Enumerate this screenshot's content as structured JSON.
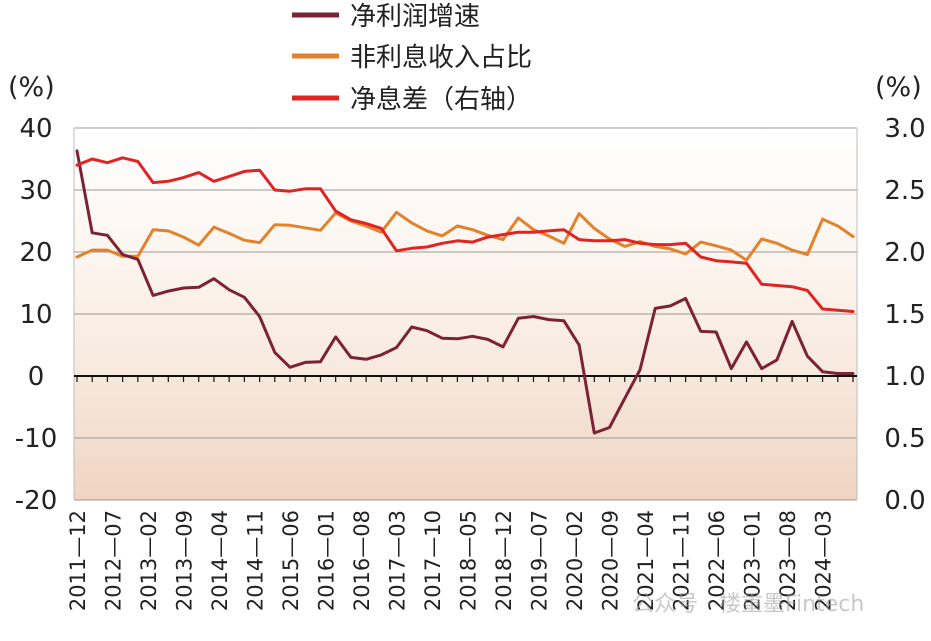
{
  "chart_data": {
    "type": "line",
    "yunit_left": "(%)",
    "yunit_right": "(%)",
    "ylim_left": [
      -20,
      40
    ],
    "yticks_left": [
      "40",
      "30",
      "20",
      "10",
      "0",
      "-10",
      "-20"
    ],
    "ylim_right": [
      0.0,
      3.0
    ],
    "yticks_right": [
      "3.0",
      "2.5",
      "2.0",
      "1.5",
      "1.0",
      "0.5",
      "0.0"
    ],
    "grid": true,
    "legend_position": "top",
    "x_tick_labels": [
      "2011-12",
      "2012-07",
      "2013-02",
      "2013-09",
      "2014-04",
      "2014-11",
      "2015-06",
      "2016-01",
      "2016-08",
      "2017-03",
      "2017-10",
      "2018-05",
      "2018-12",
      "2019-07",
      "2020-02",
      "2020-09",
      "2021-04",
      "2021-11",
      "2022-06",
      "2023-01",
      "2023-08",
      "2024-03"
    ],
    "x_quarters": [
      "2011Q4",
      "2012Q1",
      "2012Q2",
      "2012Q3",
      "2012Q4",
      "2013Q1",
      "2013Q2",
      "2013Q3",
      "2013Q4",
      "2014Q1",
      "2014Q2",
      "2014Q3",
      "2014Q4",
      "2015Q1",
      "2015Q2",
      "2015Q3",
      "2015Q4",
      "2016Q1",
      "2016Q2",
      "2016Q3",
      "2016Q4",
      "2017Q1",
      "2017Q2",
      "2017Q3",
      "2017Q4",
      "2018Q1",
      "2018Q2",
      "2018Q3",
      "2018Q4",
      "2019Q1",
      "2019Q2",
      "2019Q3",
      "2019Q4",
      "2020Q1",
      "2020Q2",
      "2020Q3",
      "2020Q4",
      "2021Q1",
      "2021Q2",
      "2021Q3",
      "2021Q4",
      "2022Q1",
      "2022Q2",
      "2022Q3",
      "2022Q4",
      "2023Q1",
      "2023Q2",
      "2023Q3",
      "2023Q4",
      "2024Q1",
      "2024Q2",
      "2024Q3"
    ],
    "series": [
      {
        "name": "净利润增速",
        "axis": "left",
        "color": "#7b2335",
        "values": [
          36.3,
          23.1,
          22.7,
          19.6,
          18.8,
          13.0,
          13.7,
          14.2,
          14.3,
          15.7,
          13.9,
          12.7,
          9.6,
          3.8,
          1.4,
          2.2,
          2.3,
          6.3,
          3.0,
          2.7,
          3.4,
          4.6,
          7.9,
          7.3,
          6.1,
          6.0,
          6.4,
          5.9,
          4.7,
          9.3,
          9.6,
          9.1,
          8.9,
          5.0,
          -9.2,
          -8.3,
          -3.6,
          1.0,
          10.9,
          11.3,
          12.5,
          7.2,
          7.1,
          1.2,
          5.5,
          1.2,
          2.6,
          8.8,
          3.2,
          0.7,
          0.4,
          0.4
        ]
      },
      {
        "name": "非利息收入占比",
        "axis": "left",
        "color": "#e3822c",
        "values": [
          19.2,
          20.3,
          20.3,
          19.3,
          19.3,
          23.6,
          23.4,
          22.4,
          21.1,
          24.0,
          23.0,
          21.9,
          21.5,
          24.4,
          24.3,
          23.9,
          23.5,
          26.3,
          25.0,
          24.2,
          23.2,
          26.4,
          24.7,
          23.4,
          22.6,
          24.2,
          23.6,
          22.7,
          22.0,
          25.5,
          23.6,
          22.6,
          21.4,
          26.2,
          23.8,
          22.1,
          20.9,
          21.7,
          20.9,
          20.5,
          19.7,
          21.6,
          21.0,
          20.3,
          18.7,
          22.1,
          21.4,
          20.3,
          19.6,
          25.3,
          24.2,
          22.5
        ]
      },
      {
        "name": "净息差（右轴）",
        "axis": "right",
        "color": "#e02424",
        "values": [
          2.7,
          2.75,
          2.72,
          2.76,
          2.73,
          2.56,
          2.57,
          2.6,
          2.64,
          2.57,
          2.61,
          2.65,
          2.66,
          2.5,
          2.49,
          2.51,
          2.51,
          2.33,
          2.26,
          2.23,
          2.19,
          2.01,
          2.03,
          2.04,
          2.07,
          2.09,
          2.08,
          2.12,
          2.14,
          2.16,
          2.16,
          2.17,
          2.18,
          2.1,
          2.09,
          2.09,
          2.1,
          2.07,
          2.06,
          2.06,
          2.07,
          1.96,
          1.93,
          1.92,
          1.91,
          1.74,
          1.73,
          1.72,
          1.69,
          1.54,
          1.53,
          1.52
        ]
      }
    ]
  },
  "watermark": "公众号 · 楼重墨Fintech"
}
